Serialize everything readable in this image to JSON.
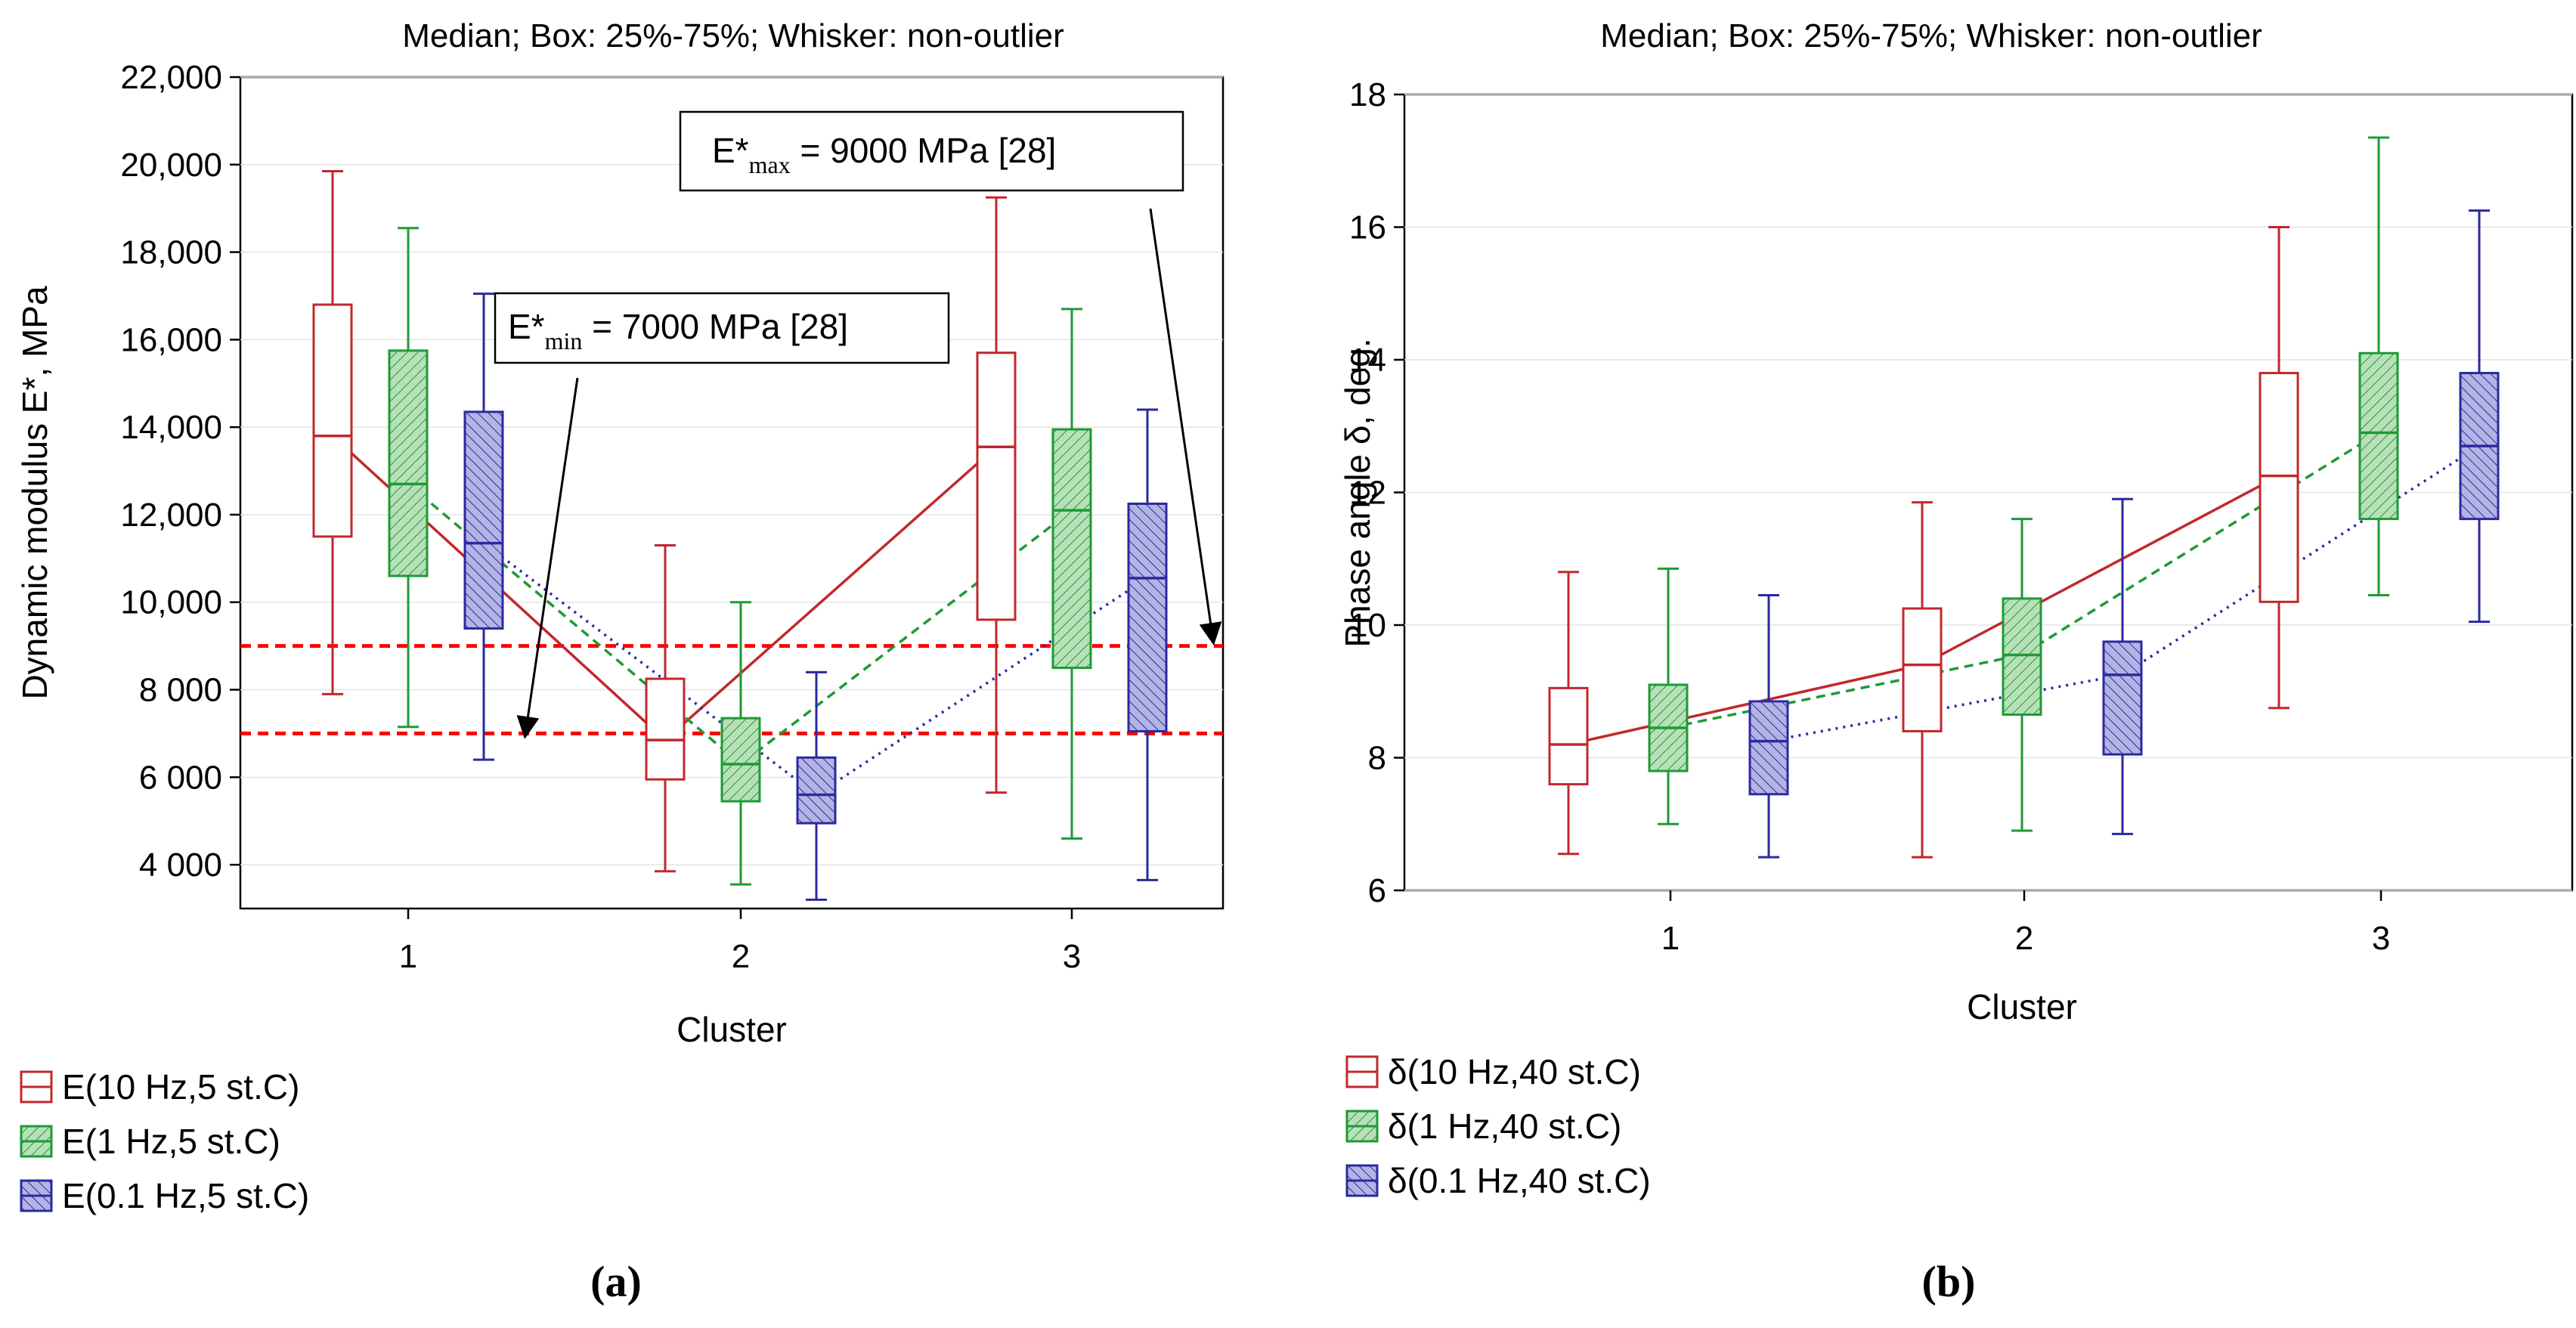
{
  "chart_data": [
    {
      "id": "a",
      "type": "box",
      "panel_label": "(a)",
      "title": "Median; Box: 25%-75%; Whisker: non-outlier",
      "xlabel": "Cluster",
      "ylabel": "Dynamic modulus E*, MPa",
      "categories": [
        "1",
        "2",
        "3"
      ],
      "ylim": [
        3000,
        22000
      ],
      "yticks": [
        4000,
        6000,
        8000,
        10000,
        12000,
        14000,
        16000,
        18000,
        20000,
        22000
      ],
      "ytick_labels": [
        "4 000",
        "6 000",
        "8 000",
        "10,000",
        "12,000",
        "14,000",
        "16,000",
        "18,000",
        "20,000",
        "22,000"
      ],
      "series": [
        {
          "name": "E(10 Hz,5 st.C)",
          "color": "#c0282d",
          "fill": "none",
          "line": "solid",
          "boxes": [
            {
              "min": 7900,
              "q1": 11500,
              "median": 13800,
              "q3": 16800,
              "max": 19850
            },
            {
              "min": 3850,
              "q1": 5950,
              "median": 6850,
              "q3": 8250,
              "max": 11300
            },
            {
              "min": 5650,
              "q1": 9600,
              "median": 13550,
              "q3": 15700,
              "max": 19250
            }
          ]
        },
        {
          "name": "E(1 Hz,5 st.C)",
          "color": "#1e9a36",
          "fill": "#b8e0b8",
          "line": "dashed",
          "boxes": [
            {
              "min": 7150,
              "q1": 10600,
              "median": 12700,
              "q3": 15750,
              "max": 18550
            },
            {
              "min": 3550,
              "q1": 5450,
              "median": 6300,
              "q3": 7350,
              "max": 10000
            },
            {
              "min": 4600,
              "q1": 8500,
              "median": 12100,
              "q3": 13950,
              "max": 16700
            }
          ]
        },
        {
          "name": "E(0.1 Hz,5 st.C)",
          "color": "#2a2aa0",
          "fill": "#b4b4e4",
          "line": "dotted",
          "boxes": [
            {
              "min": 6400,
              "q1": 9400,
              "median": 11350,
              "q3": 14350,
              "max": 17050
            },
            {
              "min": 3200,
              "q1": 4950,
              "median": 5600,
              "q3": 6450,
              "max": 8400
            },
            {
              "min": 3650,
              "q1": 7050,
              "median": 10550,
              "q3": 12250,
              "max": 14400
            }
          ]
        }
      ],
      "reference_lines": [
        {
          "value": 9000,
          "color": "#ff0000"
        },
        {
          "value": 7000,
          "color": "#ff0000"
        }
      ],
      "annotations": [
        {
          "base": "E*",
          "sub": "max",
          "rest": " = 9000 MPa [28]"
        },
        {
          "base": "E*",
          "sub": "min",
          "rest": " = 7000 MPa [28]"
        }
      ]
    },
    {
      "id": "b",
      "type": "box",
      "panel_label": "(b)",
      "title": "Median; Box: 25%-75%; Whisker: non-outlier",
      "xlabel": "Cluster",
      "ylabel": "Phase angle δ, deg.",
      "categories": [
        "1",
        "2",
        "3"
      ],
      "ylim": [
        6,
        18
      ],
      "yticks": [
        6,
        8,
        10,
        12,
        14,
        16,
        18
      ],
      "ytick_labels": [
        "6",
        "8",
        "10",
        "12",
        "14",
        "16",
        "18"
      ],
      "series": [
        {
          "name": "δ(10 Hz,40 st.C)",
          "color": "#c0282d",
          "fill": "none",
          "line": "solid",
          "boxes": [
            {
              "min": 6.55,
              "q1": 7.6,
              "median": 8.2,
              "q3": 9.05,
              "max": 10.8
            },
            {
              "min": 6.5,
              "q1": 8.4,
              "median": 9.4,
              "q3": 10.25,
              "max": 11.85
            },
            {
              "min": 8.75,
              "q1": 10.35,
              "median": 12.25,
              "q3": 13.8,
              "max": 16.0
            }
          ]
        },
        {
          "name": "δ(1 Hz,40 st.C)",
          "color": "#1e9a36",
          "fill": "#b8e0b8",
          "line": "dashed",
          "boxes": [
            {
              "min": 7.0,
              "q1": 7.8,
              "median": 8.45,
              "q3": 9.1,
              "max": 10.85
            },
            {
              "min": 6.9,
              "q1": 8.65,
              "median": 9.55,
              "q3": 10.4,
              "max": 11.6
            },
            {
              "min": 10.45,
              "q1": 11.6,
              "median": 12.9,
              "q3": 14.1,
              "max": 17.35
            }
          ]
        },
        {
          "name": "δ(0.1 Hz,40 st.C)",
          "color": "#2a2aa0",
          "fill": "#b4b4e4",
          "line": "dotted",
          "boxes": [
            {
              "min": 6.5,
              "q1": 7.45,
              "median": 8.25,
              "q3": 8.85,
              "max": 10.45
            },
            {
              "min": 6.85,
              "q1": 8.05,
              "median": 9.25,
              "q3": 9.75,
              "max": 11.9
            },
            {
              "min": 10.05,
              "q1": 11.6,
              "median": 12.7,
              "q3": 13.8,
              "max": 16.25
            }
          ]
        }
      ],
      "reference_lines": [],
      "annotations": []
    }
  ]
}
